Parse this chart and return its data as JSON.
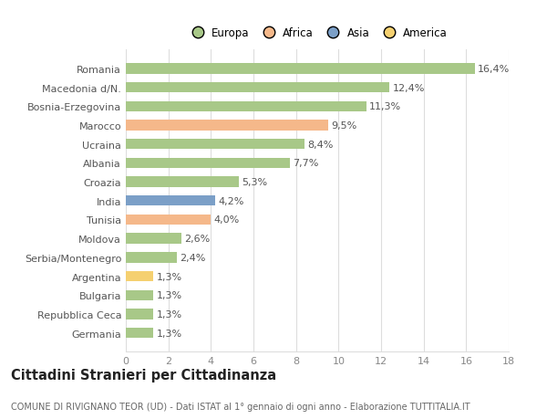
{
  "countries": [
    "Romania",
    "Macedonia d/N.",
    "Bosnia-Erzegovina",
    "Marocco",
    "Ucraina",
    "Albania",
    "Croazia",
    "India",
    "Tunisia",
    "Moldova",
    "Serbia/Montenegro",
    "Argentina",
    "Bulgaria",
    "Repubblica Ceca",
    "Germania"
  ],
  "values": [
    16.4,
    12.4,
    11.3,
    9.5,
    8.4,
    7.7,
    5.3,
    4.2,
    4.0,
    2.6,
    2.4,
    1.3,
    1.3,
    1.3,
    1.3
  ],
  "labels": [
    "16,4%",
    "12,4%",
    "11,3%",
    "9,5%",
    "8,4%",
    "7,7%",
    "5,3%",
    "4,2%",
    "4,0%",
    "2,6%",
    "2,4%",
    "1,3%",
    "1,3%",
    "1,3%",
    "1,3%"
  ],
  "colors": [
    "#a8c888",
    "#a8c888",
    "#a8c888",
    "#f5b88a",
    "#a8c888",
    "#a8c888",
    "#a8c888",
    "#7b9fc7",
    "#f5b88a",
    "#a8c888",
    "#a8c888",
    "#f5d070",
    "#a8c888",
    "#a8c888",
    "#a8c888"
  ],
  "legend_labels": [
    "Europa",
    "Africa",
    "Asia",
    "America"
  ],
  "legend_colors": [
    "#a8c888",
    "#f5b88a",
    "#7b9fc7",
    "#f5d070"
  ],
  "title": "Cittadini Stranieri per Cittadinanza",
  "subtitle": "COMUNE DI RIVIGNANO TEOR (UD) - Dati ISTAT al 1° gennaio di ogni anno - Elaborazione TUTTITALIA.IT",
  "xlim": [
    0,
    18
  ],
  "xticks": [
    0,
    2,
    4,
    6,
    8,
    10,
    12,
    14,
    16,
    18
  ],
  "bar_height": 0.55,
  "background_color": "#ffffff",
  "grid_color": "#dddddd",
  "label_fontsize": 8.0,
  "tick_fontsize": 8.0,
  "title_fontsize": 10.5,
  "subtitle_fontsize": 7.0
}
